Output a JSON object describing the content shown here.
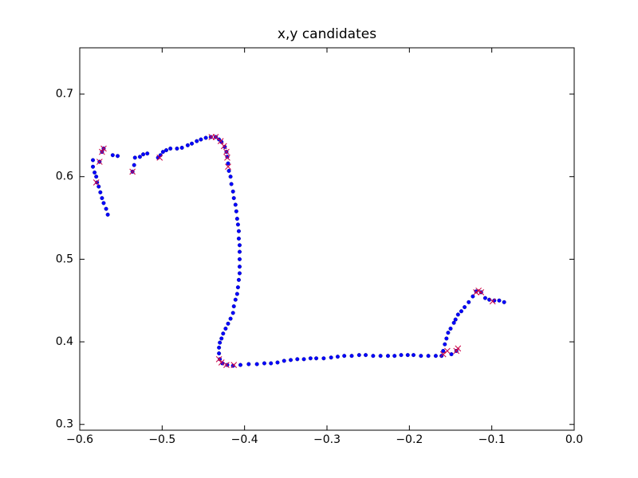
{
  "chart_data": {
    "type": "scatter",
    "title": "x,y candidates",
    "xlim": [
      -0.6,
      0.0
    ],
    "ylim": [
      0.293,
      0.756
    ],
    "xticks": [
      {
        "value": -0.6,
        "label": "−0.6"
      },
      {
        "value": -0.5,
        "label": "−0.5"
      },
      {
        "value": -0.4,
        "label": "−0.4"
      },
      {
        "value": -0.3,
        "label": "−0.3"
      },
      {
        "value": -0.2,
        "label": "−0.2"
      },
      {
        "value": -0.1,
        "label": "−0.1"
      },
      {
        "value": 0.0,
        "label": "0.0"
      }
    ],
    "yticks": [
      0.3,
      0.4,
      0.5,
      0.6,
      0.7
    ],
    "series": [
      {
        "marker": "o",
        "color": "#0000ff",
        "x": [
          -0.566,
          -0.568,
          -0.571,
          -0.573,
          -0.575,
          -0.577,
          -0.579,
          -0.58,
          -0.582,
          -0.584,
          -0.584,
          -0.576,
          -0.573,
          -0.571,
          -0.56,
          -0.554,
          -0.536,
          -0.534,
          -0.533,
          -0.527,
          -0.523,
          -0.518,
          -0.505,
          -0.502,
          -0.499,
          -0.495,
          -0.49,
          -0.482,
          -0.476,
          -0.469,
          -0.464,
          -0.458,
          -0.453,
          -0.447,
          -0.441,
          -0.435,
          -0.431,
          -0.428,
          -0.424,
          -0.422,
          -0.421,
          -0.42,
          -0.419,
          -0.417,
          -0.416,
          -0.414,
          -0.413,
          -0.411,
          -0.41,
          -0.409,
          -0.408,
          -0.407,
          -0.407,
          -0.406,
          -0.406,
          -0.406,
          -0.406,
          -0.406,
          -0.407,
          -0.408,
          -0.409,
          -0.411,
          -0.413,
          -0.414,
          -0.417,
          -0.42,
          -0.423,
          -0.426,
          -0.428,
          -0.43,
          -0.431,
          -0.431,
          -0.43,
          -0.427,
          -0.421,
          -0.414,
          -0.405,
          -0.395,
          -0.385,
          -0.376,
          -0.368,
          -0.36,
          -0.352,
          -0.344,
          -0.336,
          -0.328,
          -0.32,
          -0.313,
          -0.304,
          -0.295,
          -0.287,
          -0.279,
          -0.27,
          -0.261,
          -0.253,
          -0.244,
          -0.235,
          -0.226,
          -0.218,
          -0.21,
          -0.202,
          -0.195,
          -0.186,
          -0.177,
          -0.168,
          -0.161,
          -0.159,
          -0.157,
          -0.155,
          -0.153,
          -0.15,
          -0.146,
          -0.144,
          -0.141,
          -0.137,
          -0.133,
          -0.128,
          -0.123,
          -0.119,
          -0.113,
          -0.108,
          -0.103,
          -0.097,
          -0.091,
          -0.085,
          -0.149,
          -0.143
        ],
        "values": [
          0.554,
          0.561,
          0.568,
          0.574,
          0.581,
          0.588,
          0.593,
          0.6,
          0.605,
          0.612,
          0.62,
          0.618,
          0.63,
          0.634,
          0.626,
          0.625,
          0.606,
          0.614,
          0.623,
          0.624,
          0.627,
          0.628,
          0.623,
          0.626,
          0.63,
          0.632,
          0.634,
          0.634,
          0.635,
          0.638,
          0.64,
          0.643,
          0.645,
          0.647,
          0.648,
          0.648,
          0.645,
          0.642,
          0.636,
          0.63,
          0.624,
          0.616,
          0.607,
          0.6,
          0.591,
          0.582,
          0.574,
          0.566,
          0.558,
          0.549,
          0.542,
          0.534,
          0.525,
          0.517,
          0.509,
          0.5,
          0.491,
          0.483,
          0.475,
          0.466,
          0.458,
          0.451,
          0.443,
          0.435,
          0.428,
          0.422,
          0.416,
          0.41,
          0.404,
          0.399,
          0.393,
          0.386,
          0.379,
          0.374,
          0.372,
          0.371,
          0.372,
          0.373,
          0.373,
          0.374,
          0.374,
          0.375,
          0.377,
          0.378,
          0.379,
          0.379,
          0.38,
          0.38,
          0.38,
          0.381,
          0.382,
          0.383,
          0.383,
          0.384,
          0.384,
          0.383,
          0.383,
          0.383,
          0.383,
          0.384,
          0.384,
          0.384,
          0.383,
          0.383,
          0.383,
          0.383,
          0.389,
          0.397,
          0.404,
          0.411,
          0.416,
          0.423,
          0.427,
          0.433,
          0.437,
          0.442,
          0.448,
          0.455,
          0.461,
          0.46,
          0.453,
          0.451,
          0.45,
          0.45,
          0.448,
          0.385,
          0.389
        ]
      },
      {
        "marker": "x",
        "color": "#cc0044",
        "x": [
          -0.58,
          -0.576,
          -0.573,
          -0.571,
          -0.536,
          -0.503,
          -0.44,
          -0.435,
          -0.429,
          -0.425,
          -0.422,
          -0.421,
          -0.42,
          -0.431,
          -0.428,
          -0.422,
          -0.413,
          -0.159,
          -0.154,
          -0.143,
          -0.141,
          -0.119,
          -0.116,
          -0.113,
          -0.099
        ],
        "values": [
          0.593,
          0.618,
          0.63,
          0.634,
          0.606,
          0.623,
          0.648,
          0.648,
          0.643,
          0.637,
          0.63,
          0.623,
          0.612,
          0.379,
          0.375,
          0.372,
          0.372,
          0.385,
          0.389,
          0.389,
          0.392,
          0.46,
          0.462,
          0.46,
          0.449
        ]
      }
    ]
  }
}
